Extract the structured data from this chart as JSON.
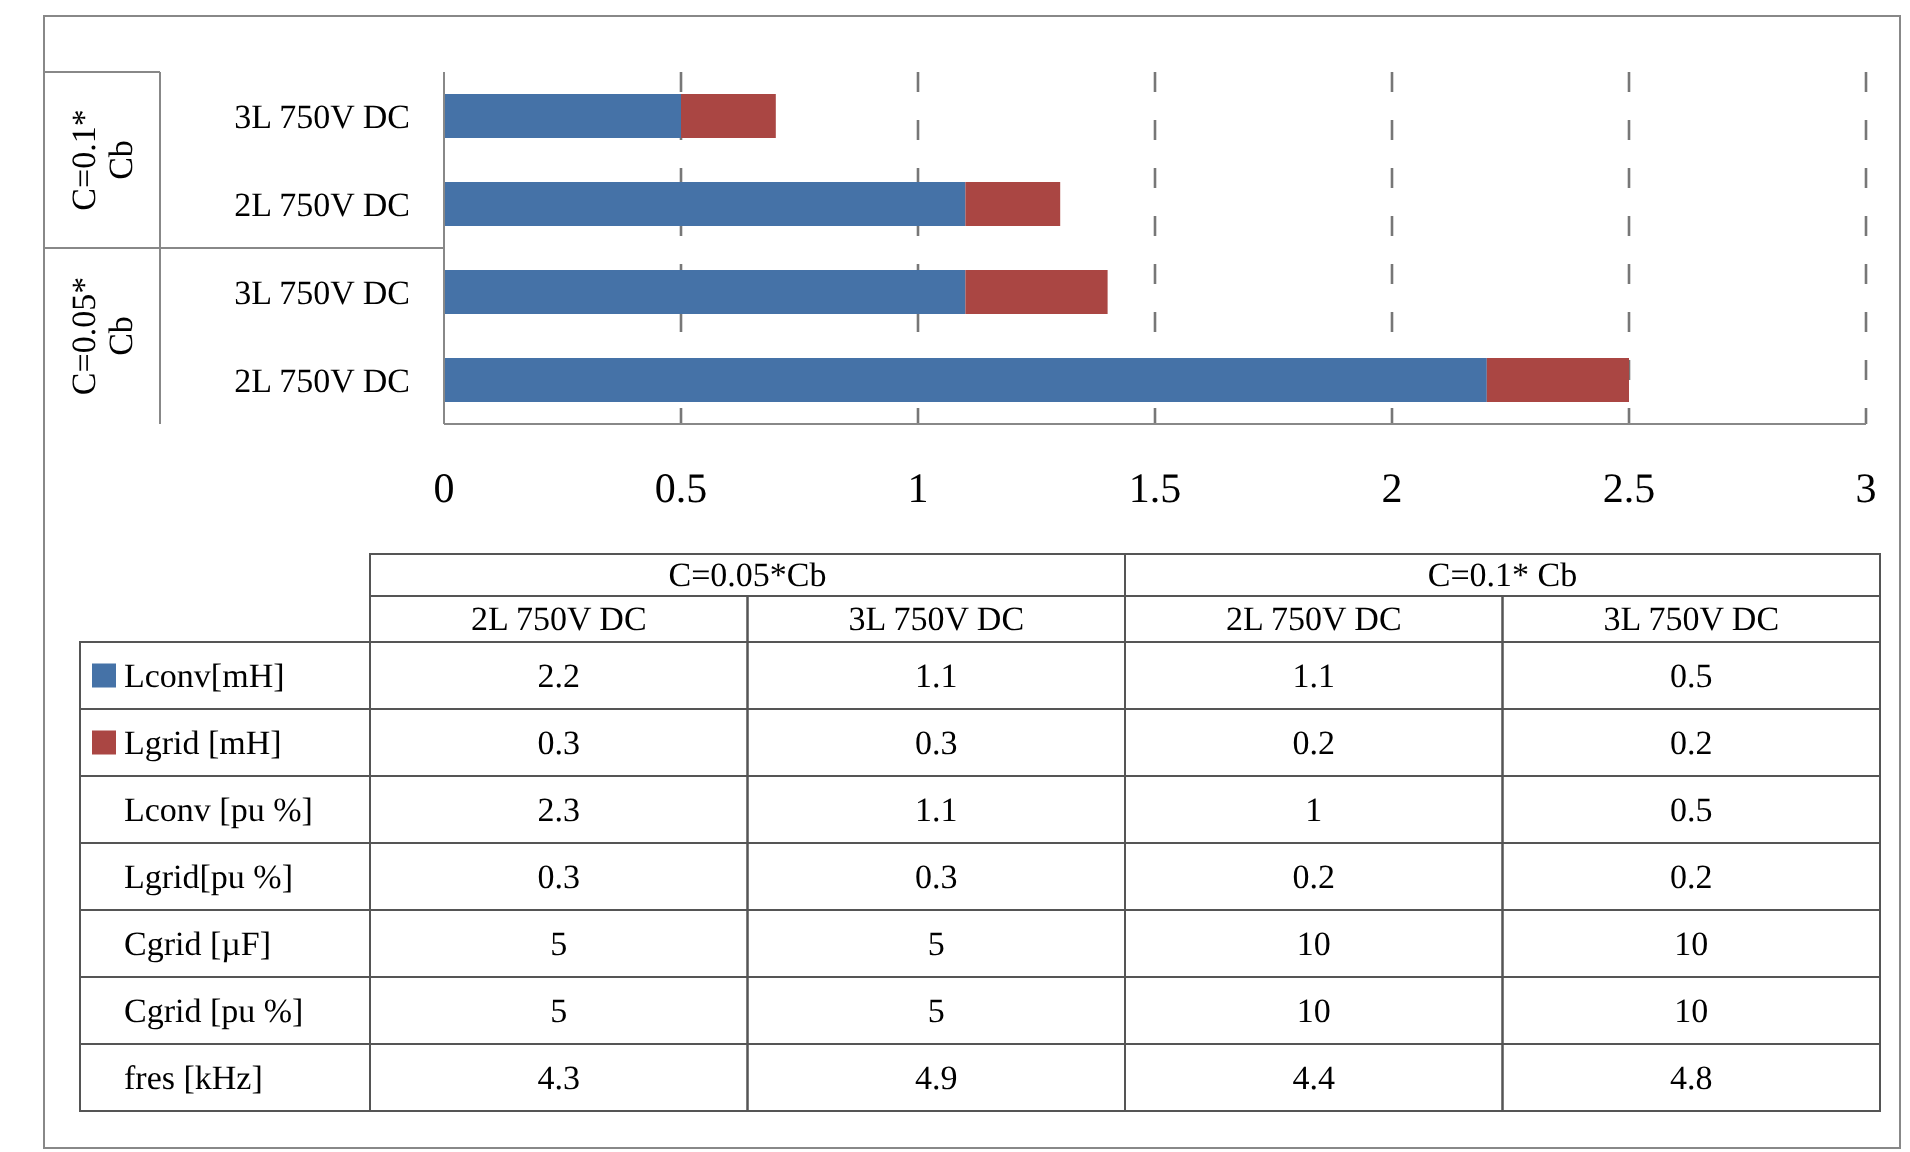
{
  "chart_data": [
    {
      "type": "bar",
      "orientation": "horizontal",
      "stacked": true,
      "categories": [
        "3L 750V DC",
        "2L 750V DC",
        "3L 750V DC",
        "2L 750V DC"
      ],
      "annotations": [
        "C=0.1* Cb",
        "C=0.05*Cb"
      ],
      "series": [
        {
          "color": "#4572a7",
          "values": [
            0.5,
            1.1,
            1.1,
            2.2
          ]
        },
        {
          "color": "#aa4643",
          "values": [
            0.2,
            0.2,
            0.3,
            0.3
          ]
        }
      ],
      "xlim": [
        0,
        3
      ],
      "xticks": [
        0,
        0.5,
        1,
        1.5,
        2,
        2.5,
        3
      ],
      "grid": "x"
    },
    {
      "type": "other",
      "data_labels": true,
      "categories": [
        "2L 750V DC",
        "3L 750V DC",
        "2L 750V DC",
        "3L 750V DC"
      ],
      "annotations": [
        "C=0.05*Cb",
        "C=0.1* Cb"
      ],
      "series": [
        {
          "name": "Lconv[mH]",
          "color": "#4572a7",
          "values": [
            2.2,
            1.1,
            1.1,
            0.5
          ]
        },
        {
          "name": "Lgrid [mH]",
          "color": "#aa4643",
          "values": [
            0.3,
            0.3,
            0.2,
            0.2
          ]
        },
        {
          "name": "Lconv [pu %]",
          "values": [
            2.3,
            1.1,
            1,
            0.5
          ]
        },
        {
          "name": "Lgrid[pu %]",
          "values": [
            0.3,
            0.3,
            0.2,
            0.2
          ]
        },
        {
          "name": "Cgrid [µF]",
          "values": [
            5,
            5,
            10,
            10
          ]
        },
        {
          "name": "Cgrid [pu %]",
          "values": [
            5,
            5,
            10,
            10
          ]
        },
        {
          "name": "fres [kHz]",
          "values": [
            4.3,
            4.9,
            4.4,
            4.8
          ]
        }
      ]
    }
  ]
}
